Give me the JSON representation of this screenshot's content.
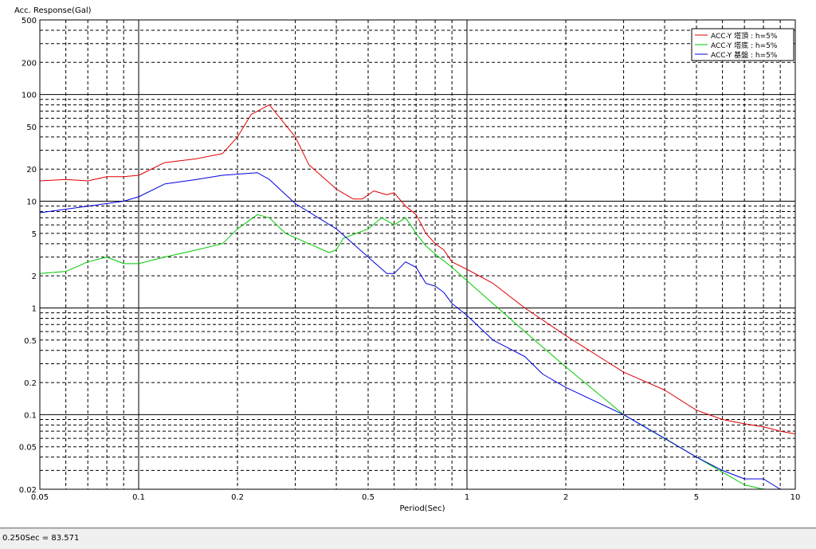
{
  "status": {
    "text": "0.250Sec = 83.571"
  },
  "colors": {
    "series1": "#e00000",
    "series2": "#00c800",
    "series3": "#0000e0"
  },
  "chart_data": {
    "type": "line",
    "ylabel": "Acc. Response(Gal)",
    "xlabel": "Period(Sec)",
    "xscale": "log",
    "yscale": "log",
    "xlim": [
      0.05,
      10
    ],
    "ylim": [
      0.02,
      500
    ],
    "grid": true,
    "legend_position": "top-right",
    "x_ticks": [
      "0.05",
      "0.1",
      "0.2",
      "0.5",
      "1",
      "2",
      "5",
      "10"
    ],
    "y_ticks": [
      "500",
      "200",
      "100",
      "50",
      "20",
      "10",
      "5",
      "2",
      "1",
      "0.5",
      "0.2",
      "0.1",
      "0.05",
      "0.02"
    ],
    "series": [
      {
        "name": "ACC-Y 塔頂 : h=5%",
        "color": "#e00000",
        "points": [
          [
            0.05,
            15.5
          ],
          [
            0.06,
            16
          ],
          [
            0.07,
            15.5
          ],
          [
            0.08,
            17
          ],
          [
            0.09,
            17
          ],
          [
            0.1,
            17.5
          ],
          [
            0.12,
            23
          ],
          [
            0.15,
            25
          ],
          [
            0.18,
            28
          ],
          [
            0.2,
            40
          ],
          [
            0.22,
            65
          ],
          [
            0.25,
            80
          ],
          [
            0.3,
            40
          ],
          [
            0.33,
            22
          ],
          [
            0.4,
            13
          ],
          [
            0.45,
            10.5
          ],
          [
            0.48,
            10.5
          ],
          [
            0.52,
            12.5
          ],
          [
            0.57,
            11.5
          ],
          [
            0.6,
            12
          ],
          [
            0.65,
            9
          ],
          [
            0.7,
            7.5
          ],
          [
            0.75,
            5
          ],
          [
            0.8,
            4
          ],
          [
            0.85,
            3.5
          ],
          [
            0.9,
            2.7
          ],
          [
            1.0,
            2.3
          ],
          [
            1.2,
            1.7
          ],
          [
            1.5,
            1
          ],
          [
            2.0,
            0.55
          ],
          [
            3.0,
            0.25
          ],
          [
            4.0,
            0.17
          ],
          [
            5.0,
            0.11
          ],
          [
            6.0,
            0.09
          ],
          [
            7.0,
            0.082
          ],
          [
            8.0,
            0.077
          ],
          [
            9.0,
            0.07
          ],
          [
            10.0,
            0.066
          ]
        ]
      },
      {
        "name": "ACC-Y 塔底 : h=5%",
        "color": "#00c800",
        "points": [
          [
            0.05,
            2.1
          ],
          [
            0.06,
            2.2
          ],
          [
            0.07,
            2.7
          ],
          [
            0.08,
            3
          ],
          [
            0.09,
            2.6
          ],
          [
            0.1,
            2.6
          ],
          [
            0.12,
            3
          ],
          [
            0.15,
            3.5
          ],
          [
            0.18,
            4
          ],
          [
            0.2,
            5.5
          ],
          [
            0.23,
            7.5
          ],
          [
            0.25,
            7
          ],
          [
            0.28,
            5
          ],
          [
            0.33,
            4
          ],
          [
            0.38,
            3.3
          ],
          [
            0.4,
            3.5
          ],
          [
            0.42,
            4.5
          ],
          [
            0.5,
            5.5
          ],
          [
            0.55,
            7
          ],
          [
            0.6,
            6
          ],
          [
            0.65,
            7
          ],
          [
            0.7,
            5
          ],
          [
            0.75,
            3.8
          ],
          [
            0.8,
            3.2
          ],
          [
            0.9,
            2.4
          ],
          [
            1.0,
            1.8
          ],
          [
            1.5,
            0.6
          ],
          [
            2.0,
            0.28
          ],
          [
            3.0,
            0.1
          ],
          [
            5.0,
            0.04
          ],
          [
            7.0,
            0.022
          ],
          [
            8.0,
            0.02
          ]
        ]
      },
      {
        "name": "ACC-Y 基盤 : h=5%",
        "color": "#0000e0",
        "points": [
          [
            0.05,
            7.8
          ],
          [
            0.07,
            9
          ],
          [
            0.09,
            10
          ],
          [
            0.1,
            11
          ],
          [
            0.12,
            14.5
          ],
          [
            0.15,
            16
          ],
          [
            0.18,
            17.5
          ],
          [
            0.23,
            18.5
          ],
          [
            0.25,
            16
          ],
          [
            0.3,
            9.5
          ],
          [
            0.4,
            5.5
          ],
          [
            0.5,
            3
          ],
          [
            0.57,
            2.1
          ],
          [
            0.6,
            2.1
          ],
          [
            0.65,
            2.7
          ],
          [
            0.7,
            2.4
          ],
          [
            0.75,
            1.7
          ],
          [
            0.8,
            1.6
          ],
          [
            0.85,
            1.4
          ],
          [
            0.9,
            1.1
          ],
          [
            1.0,
            0.85
          ],
          [
            1.2,
            0.5
          ],
          [
            1.5,
            0.35
          ],
          [
            1.7,
            0.24
          ],
          [
            2.0,
            0.18
          ],
          [
            3.0,
            0.1
          ],
          [
            4.0,
            0.06
          ],
          [
            5.0,
            0.04
          ],
          [
            6.0,
            0.03
          ],
          [
            7.0,
            0.025
          ],
          [
            8.0,
            0.025
          ],
          [
            9.0,
            0.02
          ],
          [
            10.0,
            0.019
          ]
        ]
      }
    ]
  }
}
